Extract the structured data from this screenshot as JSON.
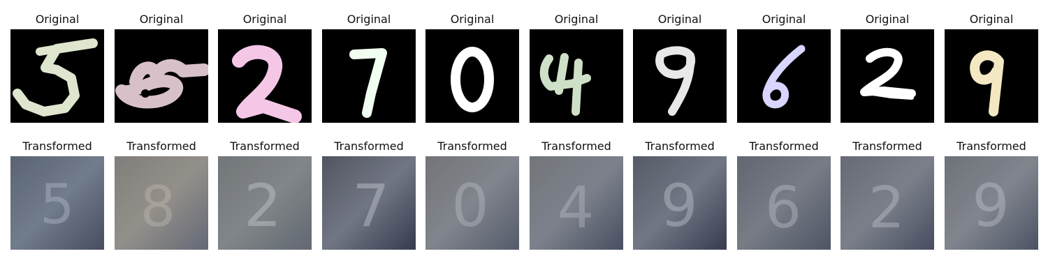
{
  "figure": {
    "original_title": "Original",
    "transformed_title": "Transformed"
  },
  "samples": [
    {
      "digit": "5",
      "original_color": "#dfe6cf",
      "transformed_digit": "5"
    },
    {
      "digit": "8",
      "original_color": "#d8c0c8",
      "transformed_digit": "8"
    },
    {
      "digit": "2",
      "original_color": "#f5c7e6",
      "transformed_digit": "2"
    },
    {
      "digit": "7",
      "original_color": "#f1fff1",
      "transformed_digit": "7"
    },
    {
      "digit": "0",
      "original_color": "#ffffff",
      "transformed_digit": "0"
    },
    {
      "digit": "4",
      "original_color": "#cfe0c8",
      "transformed_digit": "4"
    },
    {
      "digit": "9",
      "original_color": "#e8e8e8",
      "transformed_digit": "9"
    },
    {
      "digit": "6",
      "original_color": "#d8d5ff",
      "transformed_digit": "6"
    },
    {
      "digit": "2",
      "original_color": "#ffffff",
      "transformed_digit": "2"
    },
    {
      "digit": "9",
      "original_color": "#f3e8c2",
      "transformed_digit": "9"
    }
  ]
}
